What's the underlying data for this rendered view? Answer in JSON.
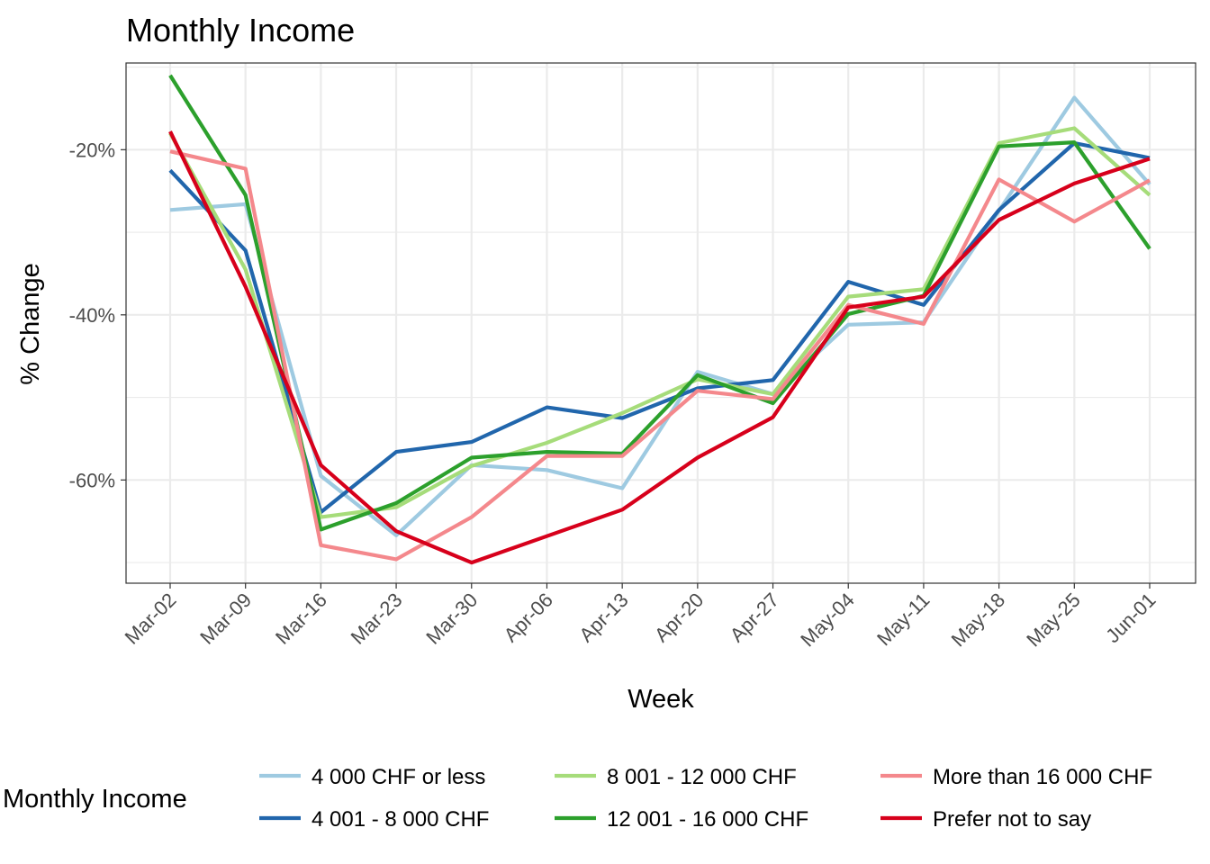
{
  "chart_data": {
    "type": "line",
    "title": "Monthly Income",
    "xlabel": "Week",
    "ylabel": "% Change",
    "categories": [
      "Mar-02",
      "Mar-09",
      "Mar-16",
      "Mar-23",
      "Mar-30",
      "Apr-06",
      "Apr-13",
      "Apr-20",
      "Apr-27",
      "May-04",
      "May-11",
      "May-18",
      "May-25",
      "Jun-01"
    ],
    "ylim": [
      -72.5,
      -9.5
    ],
    "yticks": [
      -60,
      -40,
      -20
    ],
    "ytick_labels": [
      "-60%",
      "-40%",
      "-20%"
    ],
    "grid": true,
    "legend_title": "Monthly Income",
    "legend_position": "bottom",
    "series": [
      {
        "name": "4 000 CHF or less",
        "color": "#9ECAE1",
        "values": [
          -27.3,
          -26.6,
          -59.5,
          -66.7,
          -58.2,
          -58.8,
          -61.0,
          -46.9,
          -49.6,
          -41.2,
          -40.9,
          -27.4,
          -13.7,
          -24.2
        ]
      },
      {
        "name": "4 001 - 8 000 CHF",
        "color": "#2166AC",
        "values": [
          -22.5,
          -32.2,
          -63.9,
          -56.6,
          -55.4,
          -51.2,
          -52.5,
          -48.9,
          -47.9,
          -36.0,
          -38.8,
          -27.3,
          -19.2,
          -21.0
        ]
      },
      {
        "name": "8 001 - 12 000 CHF",
        "color": "#A6DC7A",
        "values": [
          -18.0,
          -34.5,
          -64.5,
          -63.3,
          -58.3,
          -55.5,
          -51.9,
          -47.8,
          -49.6,
          -37.8,
          -36.9,
          -19.2,
          -17.4,
          -25.5
        ]
      },
      {
        "name": "12 001 - 16 000 CHF",
        "color": "#2CA02C",
        "values": [
          -11.0,
          -25.5,
          -66.0,
          -62.8,
          -57.3,
          -56.6,
          -56.8,
          -47.3,
          -50.7,
          -39.9,
          -37.7,
          -19.6,
          -19.1,
          -32.0
        ]
      },
      {
        "name": "More than 16 000 CHF",
        "color": "#F4888C",
        "values": [
          -20.2,
          -22.3,
          -67.9,
          -69.6,
          -64.5,
          -57.1,
          -57.1,
          -49.2,
          -50.2,
          -38.8,
          -41.1,
          -23.6,
          -28.7,
          -23.7
        ]
      },
      {
        "name": "Prefer not to say",
        "color": "#D7001B",
        "values": [
          -17.8,
          -36.6,
          -58.2,
          -66.2,
          -70.0,
          -66.8,
          -63.6,
          -57.3,
          -52.4,
          -39.1,
          -37.8,
          -28.5,
          -24.1,
          -21.1
        ]
      }
    ]
  }
}
